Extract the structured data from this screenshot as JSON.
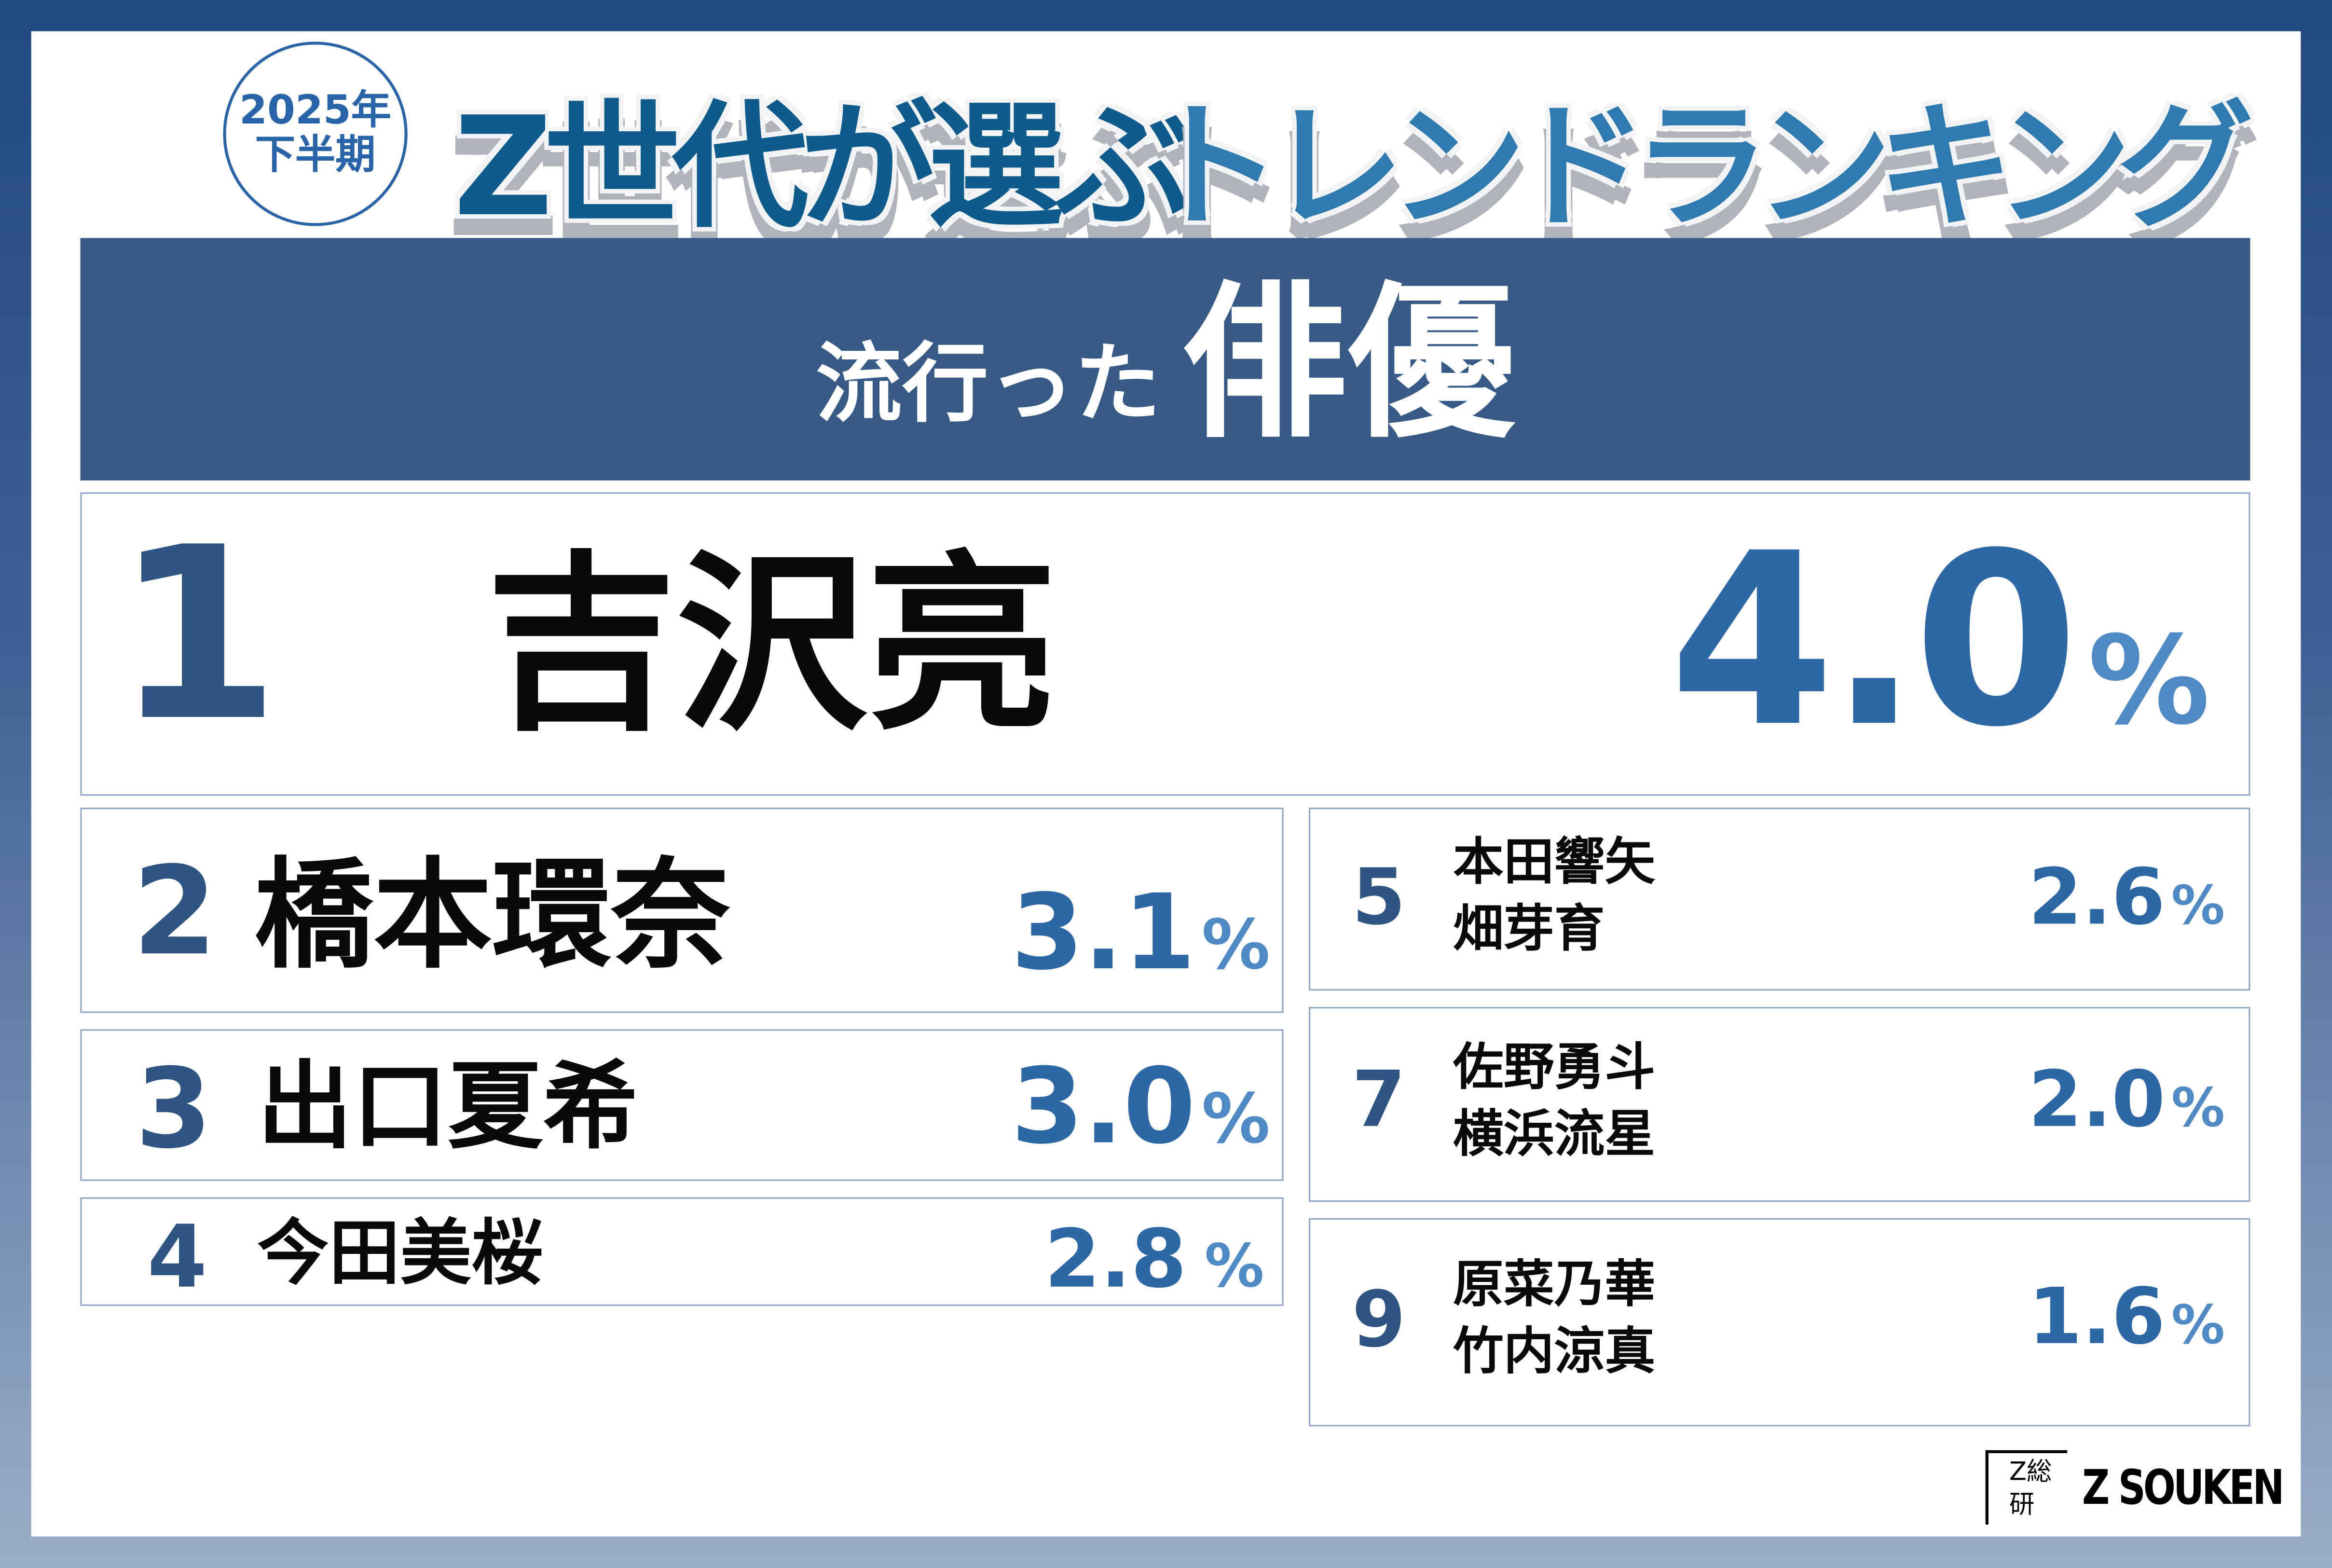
{
  "badge": {
    "year": "2025年",
    "half": "下半期"
  },
  "title": {
    "part1": "Z世代が選ぶ",
    "part2": "トレンドランキング"
  },
  "banner": {
    "small": "流行った",
    "large": "俳優"
  },
  "first": {
    "rank": "1",
    "name": "吉沢亮",
    "value": "4.0",
    "unit": "%"
  },
  "left": [
    {
      "rank": "2",
      "name": "橋本環奈",
      "value": "3.1",
      "unit": "%"
    },
    {
      "rank": "3",
      "name": "出口夏希",
      "value": "3.0",
      "unit": "%"
    },
    {
      "rank": "4",
      "name": "今田美桜",
      "value": "2.8",
      "unit": "%"
    }
  ],
  "right": [
    {
      "rank": "5",
      "names": [
        "本田響矢",
        "畑芽育"
      ],
      "value": "2.6",
      "unit": "%"
    },
    {
      "rank": "7",
      "names": [
        "佐野勇斗",
        "横浜流星"
      ],
      "value": "2.0",
      "unit": "%"
    },
    {
      "rank": "9",
      "names": [
        "原菜乃華",
        "竹内涼真"
      ],
      "value": "1.6",
      "unit": "%"
    }
  ],
  "logo": {
    "mark": "Z総研",
    "word": "Z SOUKEN"
  },
  "colors": {
    "accent": "#2d67a6",
    "banner": "#375b86",
    "title_dark": "#0f5c8c",
    "title_light": "#2f7aaf"
  }
}
